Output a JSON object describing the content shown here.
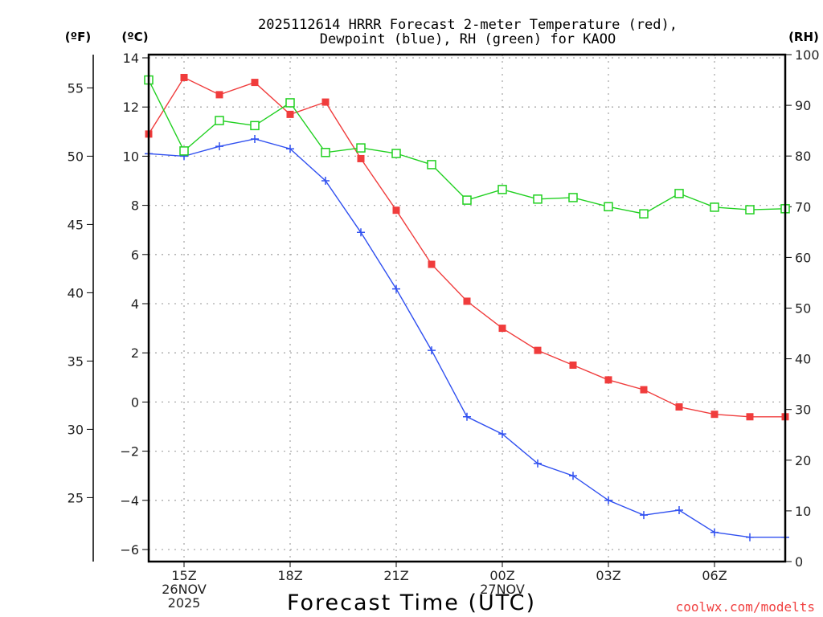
{
  "chart_data": {
    "type": "line",
    "title_lines": [
      "2025112614 HRRR Forecast 2-meter Temperature (red),",
      "Dewpoint (blue), RH (green) for KAOO"
    ],
    "xlabel": "Forecast Time (UTC)",
    "credit": "coolwx.com/modelts",
    "left_unit_f": "(ºF)",
    "left_unit_c": "(ºC)",
    "right_unit": "(RH)",
    "x_hours": [
      "14Z",
      "15Z",
      "16Z",
      "17Z",
      "18Z",
      "19Z",
      "20Z",
      "21Z",
      "22Z",
      "23Z",
      "00Z",
      "01Z",
      "02Z",
      "03Z",
      "04Z",
      "05Z",
      "06Z",
      "07Z",
      "08Z"
    ],
    "x_tick_labels": [
      {
        "hour_index": 1,
        "lines": [
          "15Z",
          "26NOV",
          "2025"
        ]
      },
      {
        "hour_index": 4,
        "lines": [
          "18Z"
        ]
      },
      {
        "hour_index": 7,
        "lines": [
          "21Z"
        ]
      },
      {
        "hour_index": 10,
        "lines": [
          "00Z",
          "27NOV"
        ]
      },
      {
        "hour_index": 13,
        "lines": [
          "03Z"
        ]
      },
      {
        "hour_index": 16,
        "lines": [
          "06Z"
        ]
      }
    ],
    "celsius_axis": {
      "ylim": [
        -6.4,
        14.1
      ],
      "ticks": [
        14,
        12,
        10,
        8,
        6,
        4,
        2,
        0,
        -2,
        -4,
        -6
      ],
      "tick_labels": [
        "14",
        "12",
        "10",
        "8",
        "6",
        "4",
        "2",
        "0",
        "−2",
        "−4",
        "−6"
      ]
    },
    "fahrenheit_axis": {
      "ticks": [
        55,
        50,
        45,
        40,
        35,
        30,
        25
      ],
      "tick_labels": [
        "55",
        "50",
        "45",
        "40",
        "35",
        "30",
        "25"
      ]
    },
    "rh_axis": {
      "ylim": [
        0,
        100
      ],
      "ticks": [
        100,
        90,
        80,
        70,
        60,
        50,
        40,
        30,
        20,
        10,
        0
      ],
      "tick_labels": [
        "100",
        "90",
        "80",
        "70",
        "60",
        "50",
        "40",
        "30",
        "20",
        "10",
        "0"
      ]
    },
    "grid": true,
    "series": [
      {
        "name": "Temperature",
        "axis": "celsius",
        "color": "#f03c3c",
        "marker": "filled-square",
        "values": [
          10.9,
          13.2,
          12.5,
          13.0,
          11.7,
          12.2,
          9.9,
          7.8,
          5.6,
          4.1,
          3.0,
          2.1,
          1.5,
          0.9,
          0.5,
          -0.2,
          -0.5,
          -0.6,
          -0.6
        ]
      },
      {
        "name": "Dewpoint",
        "axis": "celsius",
        "color": "#3050f0",
        "marker": "plus",
        "values": [
          10.1,
          10.0,
          10.4,
          10.7,
          10.3,
          9.0,
          6.9,
          4.6,
          2.1,
          -0.6,
          -1.3,
          -2.5,
          -3.0,
          -4.0,
          -4.6,
          -4.4,
          -5.3,
          -5.5,
          -5.5
        ]
      },
      {
        "name": "RH",
        "axis": "rh",
        "color": "#20d020",
        "marker": "open-square",
        "values": [
          95,
          81,
          87,
          86,
          90.5,
          80.7,
          81.6,
          80.5,
          78.3,
          71.3,
          73.4,
          71.5,
          71.8,
          70.0,
          68.6,
          72.6,
          69.9,
          69.4,
          69.6
        ]
      }
    ]
  }
}
